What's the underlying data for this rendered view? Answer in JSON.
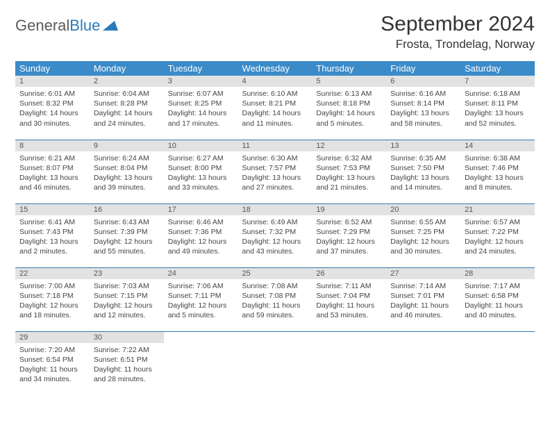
{
  "logo": {
    "text1": "General",
    "text2": "Blue"
  },
  "title": "September 2024",
  "location": "Frosta, Trondelag, Norway",
  "colors": {
    "header_bg": "#3b8bc8",
    "header_fg": "#ffffff",
    "daynum_bg": "#e2e2e2",
    "daynum_fg": "#555555",
    "border": "#2a7ab9",
    "text": "#444444",
    "page_bg": "#ffffff"
  },
  "weekdays": [
    "Sunday",
    "Monday",
    "Tuesday",
    "Wednesday",
    "Thursday",
    "Friday",
    "Saturday"
  ],
  "weeks": [
    [
      {
        "n": "1",
        "sr": "Sunrise: 6:01 AM",
        "ss": "Sunset: 8:32 PM",
        "d1": "Daylight: 14 hours",
        "d2": "and 30 minutes."
      },
      {
        "n": "2",
        "sr": "Sunrise: 6:04 AM",
        "ss": "Sunset: 8:28 PM",
        "d1": "Daylight: 14 hours",
        "d2": "and 24 minutes."
      },
      {
        "n": "3",
        "sr": "Sunrise: 6:07 AM",
        "ss": "Sunset: 8:25 PM",
        "d1": "Daylight: 14 hours",
        "d2": "and 17 minutes."
      },
      {
        "n": "4",
        "sr": "Sunrise: 6:10 AM",
        "ss": "Sunset: 8:21 PM",
        "d1": "Daylight: 14 hours",
        "d2": "and 11 minutes."
      },
      {
        "n": "5",
        "sr": "Sunrise: 6:13 AM",
        "ss": "Sunset: 8:18 PM",
        "d1": "Daylight: 14 hours",
        "d2": "and 5 minutes."
      },
      {
        "n": "6",
        "sr": "Sunrise: 6:16 AM",
        "ss": "Sunset: 8:14 PM",
        "d1": "Daylight: 13 hours",
        "d2": "and 58 minutes."
      },
      {
        "n": "7",
        "sr": "Sunrise: 6:18 AM",
        "ss": "Sunset: 8:11 PM",
        "d1": "Daylight: 13 hours",
        "d2": "and 52 minutes."
      }
    ],
    [
      {
        "n": "8",
        "sr": "Sunrise: 6:21 AM",
        "ss": "Sunset: 8:07 PM",
        "d1": "Daylight: 13 hours",
        "d2": "and 46 minutes."
      },
      {
        "n": "9",
        "sr": "Sunrise: 6:24 AM",
        "ss": "Sunset: 8:04 PM",
        "d1": "Daylight: 13 hours",
        "d2": "and 39 minutes."
      },
      {
        "n": "10",
        "sr": "Sunrise: 6:27 AM",
        "ss": "Sunset: 8:00 PM",
        "d1": "Daylight: 13 hours",
        "d2": "and 33 minutes."
      },
      {
        "n": "11",
        "sr": "Sunrise: 6:30 AM",
        "ss": "Sunset: 7:57 PM",
        "d1": "Daylight: 13 hours",
        "d2": "and 27 minutes."
      },
      {
        "n": "12",
        "sr": "Sunrise: 6:32 AM",
        "ss": "Sunset: 7:53 PM",
        "d1": "Daylight: 13 hours",
        "d2": "and 21 minutes."
      },
      {
        "n": "13",
        "sr": "Sunrise: 6:35 AM",
        "ss": "Sunset: 7:50 PM",
        "d1": "Daylight: 13 hours",
        "d2": "and 14 minutes."
      },
      {
        "n": "14",
        "sr": "Sunrise: 6:38 AM",
        "ss": "Sunset: 7:46 PM",
        "d1": "Daylight: 13 hours",
        "d2": "and 8 minutes."
      }
    ],
    [
      {
        "n": "15",
        "sr": "Sunrise: 6:41 AM",
        "ss": "Sunset: 7:43 PM",
        "d1": "Daylight: 13 hours",
        "d2": "and 2 minutes."
      },
      {
        "n": "16",
        "sr": "Sunrise: 6:43 AM",
        "ss": "Sunset: 7:39 PM",
        "d1": "Daylight: 12 hours",
        "d2": "and 55 minutes."
      },
      {
        "n": "17",
        "sr": "Sunrise: 6:46 AM",
        "ss": "Sunset: 7:36 PM",
        "d1": "Daylight: 12 hours",
        "d2": "and 49 minutes."
      },
      {
        "n": "18",
        "sr": "Sunrise: 6:49 AM",
        "ss": "Sunset: 7:32 PM",
        "d1": "Daylight: 12 hours",
        "d2": "and 43 minutes."
      },
      {
        "n": "19",
        "sr": "Sunrise: 6:52 AM",
        "ss": "Sunset: 7:29 PM",
        "d1": "Daylight: 12 hours",
        "d2": "and 37 minutes."
      },
      {
        "n": "20",
        "sr": "Sunrise: 6:55 AM",
        "ss": "Sunset: 7:25 PM",
        "d1": "Daylight: 12 hours",
        "d2": "and 30 minutes."
      },
      {
        "n": "21",
        "sr": "Sunrise: 6:57 AM",
        "ss": "Sunset: 7:22 PM",
        "d1": "Daylight: 12 hours",
        "d2": "and 24 minutes."
      }
    ],
    [
      {
        "n": "22",
        "sr": "Sunrise: 7:00 AM",
        "ss": "Sunset: 7:18 PM",
        "d1": "Daylight: 12 hours",
        "d2": "and 18 minutes."
      },
      {
        "n": "23",
        "sr": "Sunrise: 7:03 AM",
        "ss": "Sunset: 7:15 PM",
        "d1": "Daylight: 12 hours",
        "d2": "and 12 minutes."
      },
      {
        "n": "24",
        "sr": "Sunrise: 7:06 AM",
        "ss": "Sunset: 7:11 PM",
        "d1": "Daylight: 12 hours",
        "d2": "and 5 minutes."
      },
      {
        "n": "25",
        "sr": "Sunrise: 7:08 AM",
        "ss": "Sunset: 7:08 PM",
        "d1": "Daylight: 11 hours",
        "d2": "and 59 minutes."
      },
      {
        "n": "26",
        "sr": "Sunrise: 7:11 AM",
        "ss": "Sunset: 7:04 PM",
        "d1": "Daylight: 11 hours",
        "d2": "and 53 minutes."
      },
      {
        "n": "27",
        "sr": "Sunrise: 7:14 AM",
        "ss": "Sunset: 7:01 PM",
        "d1": "Daylight: 11 hours",
        "d2": "and 46 minutes."
      },
      {
        "n": "28",
        "sr": "Sunrise: 7:17 AM",
        "ss": "Sunset: 6:58 PM",
        "d1": "Daylight: 11 hours",
        "d2": "and 40 minutes."
      }
    ],
    [
      {
        "n": "29",
        "sr": "Sunrise: 7:20 AM",
        "ss": "Sunset: 6:54 PM",
        "d1": "Daylight: 11 hours",
        "d2": "and 34 minutes."
      },
      {
        "n": "30",
        "sr": "Sunrise: 7:22 AM",
        "ss": "Sunset: 6:51 PM",
        "d1": "Daylight: 11 hours",
        "d2": "and 28 minutes."
      },
      null,
      null,
      null,
      null,
      null
    ]
  ]
}
